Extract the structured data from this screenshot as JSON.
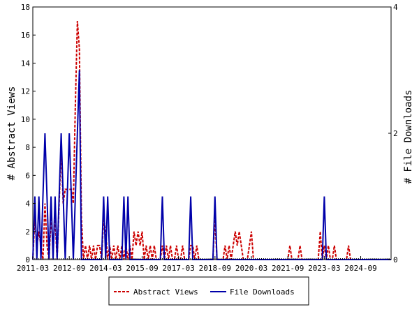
{
  "chart_data": {
    "type": "line",
    "ylabel": "# Abstract Views",
    "y2label": "# File Downloads",
    "ylim": [
      0,
      18
    ],
    "y2lim": [
      0,
      4
    ],
    "yticks": [
      0,
      2,
      4,
      6,
      8,
      10,
      12,
      14,
      16,
      18
    ],
    "y2ticks": [
      0,
      2,
      4
    ],
    "xlim": [
      "2011-03",
      "2025-12"
    ],
    "xticks": [
      "2011-03",
      "2012-09",
      "2014-03",
      "2015-09",
      "2017-03",
      "2018-09",
      "2020-03",
      "2021-09",
      "2023-03",
      "2024-09"
    ],
    "grid": false,
    "legend_position": "bottom",
    "series": [
      {
        "name": "Abstract Views",
        "axis": "left",
        "color": "#cc0000",
        "style": "dashed",
        "points": [
          [
            "2011-03",
            0
          ],
          [
            "2011-04",
            3
          ],
          [
            "2011-05",
            1
          ],
          [
            "2011-06",
            2
          ],
          [
            "2011-07",
            1
          ],
          [
            "2011-08",
            0
          ],
          [
            "2011-09",
            4
          ],
          [
            "2011-10",
            1
          ],
          [
            "2011-11",
            0
          ],
          [
            "2011-12",
            3
          ],
          [
            "2012-01",
            1
          ],
          [
            "2012-02",
            3
          ],
          [
            "2012-03",
            0
          ],
          [
            "2012-04",
            4
          ],
          [
            "2012-05",
            8
          ],
          [
            "2012-06",
            4
          ],
          [
            "2012-07",
            5
          ],
          [
            "2012-08",
            5
          ],
          [
            "2012-09",
            5
          ],
          [
            "2012-10",
            5
          ],
          [
            "2012-11",
            4
          ],
          [
            "2012-12",
            11
          ],
          [
            "2013-01",
            17
          ],
          [
            "2013-02",
            15
          ],
          [
            "2013-03",
            3
          ],
          [
            "2013-04",
            0
          ],
          [
            "2013-05",
            1
          ],
          [
            "2013-06",
            0
          ],
          [
            "2013-07",
            1
          ],
          [
            "2013-08",
            0
          ],
          [
            "2013-09",
            1
          ],
          [
            "2013-10",
            0
          ],
          [
            "2013-11",
            1
          ],
          [
            "2013-12",
            1
          ],
          [
            "2014-01",
            0
          ],
          [
            "2014-02",
            3
          ],
          [
            "2014-03",
            2
          ],
          [
            "2014-04",
            0
          ],
          [
            "2014-05",
            1
          ],
          [
            "2014-06",
            0
          ],
          [
            "2014-07",
            1
          ],
          [
            "2014-08",
            0
          ],
          [
            "2014-09",
            1
          ],
          [
            "2014-10",
            0
          ],
          [
            "2014-11",
            1
          ],
          [
            "2014-12",
            0
          ],
          [
            "2015-01",
            1
          ],
          [
            "2015-02",
            0
          ],
          [
            "2015-03",
            1
          ],
          [
            "2015-04",
            0
          ],
          [
            "2015-05",
            2
          ],
          [
            "2015-06",
            1
          ],
          [
            "2015-07",
            2
          ],
          [
            "2015-08",
            1
          ],
          [
            "2015-09",
            2
          ],
          [
            "2015-10",
            0
          ],
          [
            "2015-11",
            1
          ],
          [
            "2015-12",
            0
          ],
          [
            "2016-01",
            1
          ],
          [
            "2016-02",
            0
          ],
          [
            "2016-03",
            1
          ],
          [
            "2016-04",
            0
          ],
          [
            "2016-05",
            0
          ],
          [
            "2016-06",
            0
          ],
          [
            "2016-07",
            1
          ],
          [
            "2016-08",
            0
          ],
          [
            "2016-09",
            1
          ],
          [
            "2016-10",
            0
          ],
          [
            "2016-11",
            1
          ],
          [
            "2016-12",
            0
          ],
          [
            "2017-01",
            0
          ],
          [
            "2017-02",
            1
          ],
          [
            "2017-03",
            0
          ],
          [
            "2017-04",
            0
          ],
          [
            "2017-05",
            1
          ],
          [
            "2017-06",
            0
          ],
          [
            "2017-07",
            0
          ],
          [
            "2017-08",
            0
          ],
          [
            "2017-09",
            1
          ],
          [
            "2017-10",
            1
          ],
          [
            "2017-11",
            0
          ],
          [
            "2017-12",
            1
          ],
          [
            "2018-01",
            0
          ],
          [
            "2018-02",
            0
          ],
          [
            "2018-03",
            0
          ],
          [
            "2018-04",
            0
          ],
          [
            "2018-05",
            0
          ],
          [
            "2018-06",
            0
          ],
          [
            "2018-07",
            0
          ],
          [
            "2018-08",
            0
          ],
          [
            "2018-09",
            3
          ],
          [
            "2018-10",
            0
          ],
          [
            "2018-11",
            0
          ],
          [
            "2018-12",
            0
          ],
          [
            "2019-01",
            0
          ],
          [
            "2019-02",
            1
          ],
          [
            "2019-03",
            0
          ],
          [
            "2019-04",
            1
          ],
          [
            "2019-05",
            0
          ],
          [
            "2019-06",
            1
          ],
          [
            "2019-07",
            2
          ],
          [
            "2019-08",
            1
          ],
          [
            "2019-09",
            2
          ],
          [
            "2019-10",
            1
          ],
          [
            "2019-11",
            0
          ],
          [
            "2019-12",
            0
          ],
          [
            "2020-01",
            0
          ],
          [
            "2020-02",
            1
          ],
          [
            "2020-03",
            2
          ],
          [
            "2020-04",
            0
          ],
          [
            "2020-05",
            0
          ],
          [
            "2020-06",
            0
          ],
          [
            "2021-09",
            0
          ],
          [
            "2021-10",
            1
          ],
          [
            "2021-11",
            0
          ],
          [
            "2022-02",
            0
          ],
          [
            "2022-03",
            1
          ],
          [
            "2022-04",
            0
          ],
          [
            "2022-12",
            0
          ],
          [
            "2023-01",
            2
          ],
          [
            "2023-02",
            0
          ],
          [
            "2023-03",
            1
          ],
          [
            "2023-04",
            0
          ],
          [
            "2023-05",
            1
          ],
          [
            "2023-06",
            0
          ],
          [
            "2023-07",
            0
          ],
          [
            "2023-08",
            1
          ],
          [
            "2023-09",
            0
          ],
          [
            "2024-02",
            0
          ],
          [
            "2024-03",
            1
          ],
          [
            "2024-04",
            0
          ],
          [
            "2025-12",
            0
          ]
        ]
      },
      {
        "name": "File Downloads",
        "axis": "right",
        "color": "#0000aa",
        "style": "solid",
        "points": [
          [
            "2011-03",
            0
          ],
          [
            "2011-04",
            1
          ],
          [
            "2011-05",
            0
          ],
          [
            "2011-06",
            1
          ],
          [
            "2011-07",
            0
          ],
          [
            "2011-08",
            1
          ],
          [
            "2011-09",
            2
          ],
          [
            "2011-10",
            1
          ],
          [
            "2011-11",
            0
          ],
          [
            "2011-12",
            1
          ],
          [
            "2012-01",
            0
          ],
          [
            "2012-02",
            1
          ],
          [
            "2012-03",
            0
          ],
          [
            "2012-04",
            1
          ],
          [
            "2012-05",
            2
          ],
          [
            "2012-06",
            1
          ],
          [
            "2012-07",
            0
          ],
          [
            "2012-08",
            1
          ],
          [
            "2012-09",
            2
          ],
          [
            "2012-10",
            1
          ],
          [
            "2012-11",
            0
          ],
          [
            "2012-12",
            1
          ],
          [
            "2013-01",
            2
          ],
          [
            "2013-02",
            3
          ],
          [
            "2013-03",
            0
          ],
          [
            "2013-04",
            0
          ],
          [
            "2014-01",
            0
          ],
          [
            "2014-02",
            1
          ],
          [
            "2014-03",
            0
          ],
          [
            "2014-04",
            1
          ],
          [
            "2014-05",
            0
          ],
          [
            "2014-11",
            0
          ],
          [
            "2014-12",
            1
          ],
          [
            "2015-01",
            0
          ],
          [
            "2015-02",
            1
          ],
          [
            "2015-03",
            0
          ],
          [
            "2016-06",
            0
          ],
          [
            "2016-07",
            1
          ],
          [
            "2016-08",
            0
          ],
          [
            "2017-08",
            0
          ],
          [
            "2017-09",
            1
          ],
          [
            "2017-10",
            0
          ],
          [
            "2018-08",
            0
          ],
          [
            "2018-09",
            1
          ],
          [
            "2018-10",
            0
          ],
          [
            "2023-02",
            0
          ],
          [
            "2023-03",
            1
          ],
          [
            "2023-04",
            0
          ],
          [
            "2025-12",
            0
          ]
        ]
      }
    ]
  }
}
